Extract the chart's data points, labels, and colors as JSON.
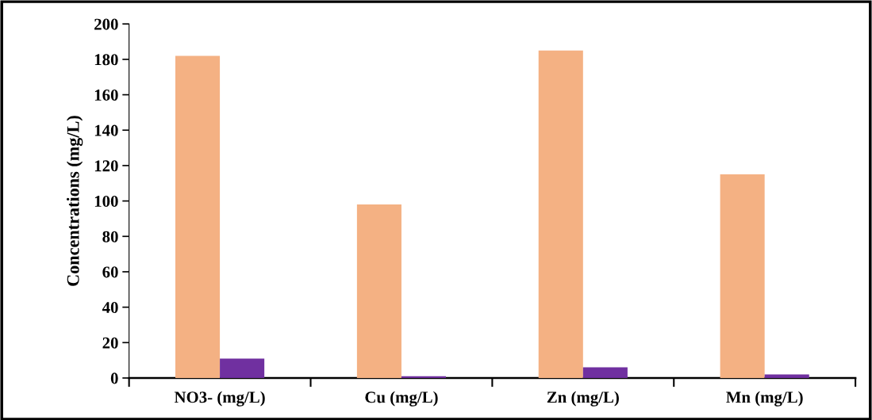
{
  "chart_data": {
    "type": "bar",
    "ylabel": "Concentrations (mg/L)",
    "categories": [
      "NO3- (mg/L)",
      "Cu (mg/L)",
      "Zn (mg/L)",
      "Mn (mg/L)"
    ],
    "series": [
      {
        "color": "#f4b183",
        "values": [
          182,
          98,
          185,
          115
        ]
      },
      {
        "color": "#7030a0",
        "values": [
          11,
          1,
          6,
          2
        ]
      }
    ],
    "ylim": [
      0,
      200
    ],
    "yticks": [
      0,
      20,
      40,
      60,
      80,
      100,
      120,
      140,
      160,
      180,
      200
    ],
    "grid": false,
    "legend": false
  }
}
